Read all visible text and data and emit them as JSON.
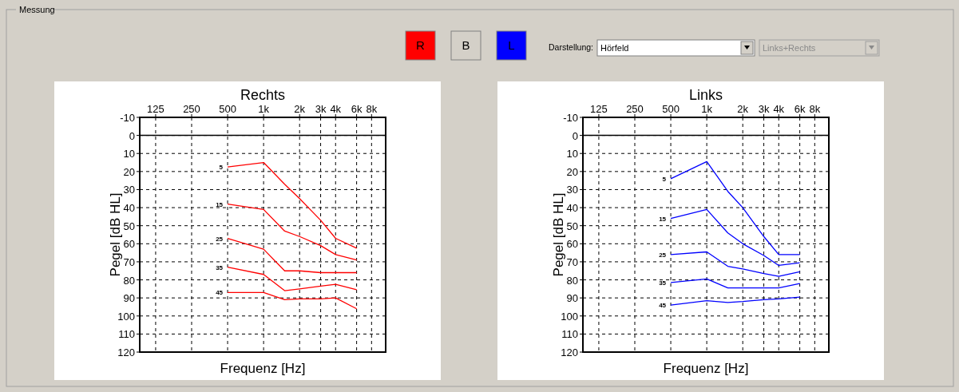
{
  "chart_data": [
    {
      "type": "other",
      "title": "Messung",
      "annotations": [
        "R",
        "B",
        "L",
        "Darstellung:",
        "Hörfeld",
        "Links+Rechts"
      ]
    },
    {
      "type": "line",
      "title": "Rechts",
      "xlabel": "Frequenz [Hz]",
      "ylabel": "Pegel [dB HL]",
      "log": "x",
      "grid": true,
      "x": [
        500,
        1000,
        1500,
        2000,
        3000,
        4000,
        6000
      ],
      "xlim": [
        92,
        10500
      ],
      "xticks": [
        {
          "value": 125,
          "label": "125"
        },
        {
          "value": 250,
          "label": "250"
        },
        {
          "value": 500,
          "label": "500"
        },
        {
          "value": 1000,
          "label": "1k"
        },
        {
          "value": 2000,
          "label": "2k"
        },
        {
          "value": 3000,
          "label": "3k"
        },
        {
          "value": 4000,
          "label": "4k"
        },
        {
          "value": 6000,
          "label": "6k"
        },
        {
          "value": 8000,
          "label": "8k"
        }
      ],
      "ylim": [
        120,
        -10
      ],
      "yticks": [
        -10,
        0,
        10,
        20,
        30,
        40,
        50,
        60,
        70,
        80,
        90,
        100,
        110,
        120
      ],
      "ref_lines": [
        {
          "axis": "y",
          "value": 0,
          "color": "#000000"
        }
      ],
      "series": [
        {
          "name": "5",
          "color": "#ff0000",
          "values": [
            17.5,
            15,
            27,
            35,
            47,
            57,
            62.5
          ]
        },
        {
          "name": "15",
          "color": "#ff0000",
          "values": [
            38,
            41,
            53,
            56,
            61,
            66,
            69
          ]
        },
        {
          "name": "25",
          "color": "#ff0000",
          "values": [
            57,
            63,
            75,
            75,
            76,
            76,
            76
          ]
        },
        {
          "name": "35",
          "color": "#ff0000",
          "values": [
            73,
            77,
            86,
            85,
            83.5,
            82.5,
            85.5
          ]
        },
        {
          "name": "45",
          "color": "#ff0000",
          "values": [
            87,
            87,
            91,
            90.5,
            90.5,
            90,
            96
          ]
        }
      ]
    },
    {
      "type": "line",
      "title": "Links",
      "xlabel": "Frequenz [Hz]",
      "ylabel": "Pegel [dB HL]",
      "log": "x",
      "grid": true,
      "x": [
        500,
        1000,
        1500,
        2000,
        3000,
        4000,
        6000
      ],
      "xlim": [
        92,
        10500
      ],
      "xticks": [
        {
          "value": 125,
          "label": "125"
        },
        {
          "value": 250,
          "label": "250"
        },
        {
          "value": 500,
          "label": "500"
        },
        {
          "value": 1000,
          "label": "1k"
        },
        {
          "value": 2000,
          "label": "2k"
        },
        {
          "value": 3000,
          "label": "3k"
        },
        {
          "value": 4000,
          "label": "4k"
        },
        {
          "value": 6000,
          "label": "6k"
        },
        {
          "value": 8000,
          "label": "8k"
        }
      ],
      "ylim": [
        120,
        -10
      ],
      "yticks": [
        -10,
        0,
        10,
        20,
        30,
        40,
        50,
        60,
        70,
        80,
        90,
        100,
        110,
        120
      ],
      "ref_lines": [
        {
          "axis": "y",
          "value": 0,
          "color": "#000000"
        }
      ],
      "series": [
        {
          "name": "5",
          "color": "#0000ff",
          "values": [
            24,
            14.5,
            31,
            40,
            56,
            66,
            66
          ]
        },
        {
          "name": "15",
          "color": "#0000ff",
          "values": [
            46,
            41,
            54,
            60,
            66.5,
            72,
            70.5
          ]
        },
        {
          "name": "25",
          "color": "#0000ff",
          "values": [
            66,
            64.5,
            72.5,
            74,
            76.5,
            78,
            75.5
          ]
        },
        {
          "name": "35",
          "color": "#0000ff",
          "values": [
            81.5,
            79.5,
            84.5,
            84.5,
            84.5,
            84.5,
            82
          ]
        },
        {
          "name": "45",
          "color": "#0000ff",
          "values": [
            94,
            91.5,
            92.5,
            92,
            91,
            90.5,
            89.5
          ]
        }
      ]
    }
  ]
}
